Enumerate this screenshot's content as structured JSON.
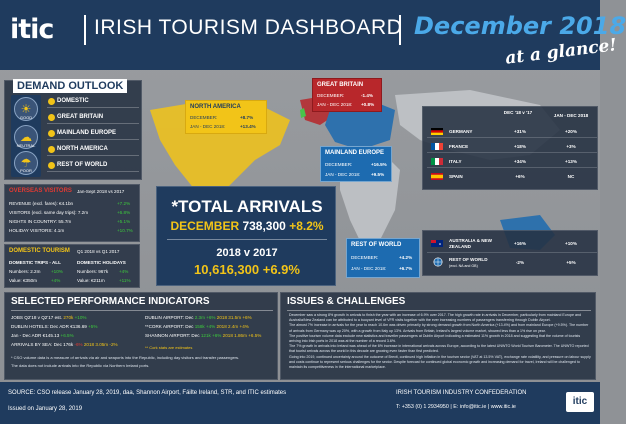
{
  "header": {
    "logo": "itic",
    "title": "IRISH TOURISM DASHBOARD",
    "month": "December 2018",
    "subtitle": "at a glance!"
  },
  "outlook": {
    "title": "DEMAND OUTLOOK",
    "weather": [
      "GOOD",
      "NEUTRAL",
      "MIXED",
      "POOR"
    ],
    "regions": [
      "DOMESTIC",
      "GREAT BRITAIN",
      "MAINLAND EUROPE",
      "NORTH AMERICA",
      "REST OF WORLD"
    ]
  },
  "callouts": {
    "na": {
      "title": "NORTH AMERICA",
      "r1": "DECEMBER:",
      "v1": "+8.7%",
      "r2": "JAN - DEC 2018:",
      "v2": "+13.4%"
    },
    "gb": {
      "title": "GREAT BRITAIN",
      "r1": "DECEMBER:",
      "v1": "-1.4%",
      "r2": "JAN - DEC 2018:",
      "v2": "+0.8%"
    },
    "me": {
      "title": "MAINLAND EUROPE",
      "r1": "DECEMBER:",
      "v1": "+16.5%",
      "r2": "JAN - DEC 2018:",
      "v2": "+9.5%"
    },
    "row": {
      "title": "REST OF WORLD",
      "r1": "DECEMBER:",
      "v1": "+4.2%",
      "r2": "JAN - DEC 2018:",
      "v2": "+6.7%"
    }
  },
  "countries": {
    "col1": "DEC '18 v '17",
    "col2": "JAN - DEC 2018",
    "rows": [
      {
        "name": "GERMANY",
        "v1": "+31%",
        "v2": "+20%"
      },
      {
        "name": "FRANCE",
        "v1": "+18%",
        "v2": "+3%"
      },
      {
        "name": "ITALY",
        "v1": "+34%",
        "v2": "+13%"
      },
      {
        "name": "SPAIN",
        "v1": "+6%",
        "v2": "NC"
      }
    ],
    "aus": [
      {
        "name": "AUSTRALIA & NEW ZEALAND",
        "v1": "+16%",
        "v2": "+10%"
      },
      {
        "name": "REST OF WORLD",
        "sub": "(excl. NA and GB)",
        "v1": "-2%",
        "v2": "+5%"
      }
    ]
  },
  "overseas": {
    "title": "OVERSEAS VISITORS",
    "period": "Jan-Sept 2018 vs 2017",
    "rows": [
      {
        "label": "REVENUE (excl. fares): €4.1bn",
        "value": "+7.2%"
      },
      {
        "label": "VISITORS (excl. same day trips): 7.2m",
        "value": "+6.8%"
      },
      {
        "label": "NIGHTS IN COUNTRY: 55.7m",
        "value": "+5.1%"
      },
      {
        "label": "HOLIDAY VISITORS: 4.1m",
        "value": "+10.7%"
      }
    ]
  },
  "domestic": {
    "title": "DOMESTIC TOURISM",
    "period": "Q1 2018 vs Q1 2017",
    "c1h": "DOMESTIC TRIPS - ALL",
    "c1a": "Numbers: 2.2m",
    "c1av": "+10%",
    "c1b": "Value: €350m",
    "c1bv": "+4%",
    "c2h": "DOMESTIC HOLIDAYS",
    "c2a": "Numbers: 967k",
    "c2av": "+4%",
    "c2b": "Value: €211m",
    "c2bv": "+11%"
  },
  "arrivals": {
    "title": "*TOTAL ARRIVALS",
    "dec_label": "DECEMBER",
    "dec_value": "738,300",
    "dec_change": "+8.2%",
    "vs": "2018 v 2017",
    "year_value": "10,616,300",
    "year_change": "+6.9%"
  },
  "indicators": {
    "title": "SELECTED PERFORMANCE INDICATORS",
    "left": [
      {
        "label": "JOBS Q2'18 v Q2'17 est.",
        "value": "270k",
        "change": "+10%"
      },
      {
        "label": "DUBLIN HOTELS: Dec ADR €136.69",
        "value": "",
        "change": "+5%"
      },
      {
        "label": "Jan - Dec ADR €145.13",
        "value": "",
        "change": "+6.5%"
      },
      {
        "label": "ARRIVALS BY SEA: Dec 176k",
        "value": "-6%",
        "change": "2018 3.05m -2%"
      }
    ],
    "right": [
      {
        "label": "DUBLIN AIRPORT: Dec",
        "value": "2.3m +6%",
        "change": "2018 31.5m +6%"
      },
      {
        "label": "**CORK AIRPORT: Dec",
        "value": "158k +4%",
        "change": "2018 2.4m +4%"
      },
      {
        "label": "SHANNON AIRPORT: Dec",
        "value": "121k +6%",
        "change": "2018 1.86m +6.5%"
      }
    ],
    "note1": "* CSO volume data is a measure of arrivals via air and seaports into the Republic, including day visitors and transfer passengers.",
    "note2": "The data does not include arrivals into the Republic via Northern Ireland ports.",
    "note3": "** Cork stats are estimates"
  },
  "issues": {
    "title": "ISSUES & CHALLENGES",
    "paragraphs": [
      "December saw a strong 8% growth in arrivals to finish the year with an increase of 6.9% over 2017. The high growth rate in arrivals in December, particularly from mainland Europe and Australia/New Zealand can be attributed to a buoyant level of VFR visits together with the ever increasing numbers of passengers transferring through Dublin Airport.",
      "The almost 7% increase in arrivals for the year to reach 10.6m was driven primarily by strong demand growth from North America (+13.4%) and from mainland Europe (+9.5%). The number of arrivals from Germany was up 20%, with a growth from Italy up 13%. Arrivals from Britain, Ireland's largest volume market, showed less than a 1% rise on year.",
      "The positive tourism volume data exclude new statistics and traveller passengers at Dublin Airport indicating a estimated 11% growth in 2018 and suggesting that the volume of tourists arriving into Irish ports in 2018 was at the number of a record 3.6%.",
      "The 7% growth in arrivals into Ireland was ahead of the 6% increase in international arrivals across Europe, according to the latest UNWTO World Tourism Barometer. The UNWTO reported that tourist arrivals across the world in this decade are growing even faster than first predicted.",
      "Going into 2019, continued uncertainty around the outcome of Brexit, continued high inflation in the tourism sector (VAT at 13.5% VAT), exchange rate volatility, and pressure on labour supply and costs continue to represent serious challenges for the sector. Despite forecast for continued global economic growth and increasing demand for travel, Ireland will be challenged to maintain its competitiveness in the international marketplace."
    ]
  },
  "footer": {
    "source": "SOURCE: CSO release January 28, 2019, daa, Shannon Airport, Fáilte Ireland, STR, and ITIC estimates",
    "issued": "Issued on January 28, 2019",
    "org": "IRISH TOURISM INDUSTRY CONFEDERATION",
    "contact": "T: +353 (0) 1 2934950 | E: info@itic.ie | www.itic.ie",
    "logo": "itic"
  },
  "colors": {
    "navy": "#1f3b5e",
    "yellow": "#f2c418",
    "green": "#3ccb3c",
    "red": "#e03a33",
    "blue": "#1d6bb0"
  }
}
